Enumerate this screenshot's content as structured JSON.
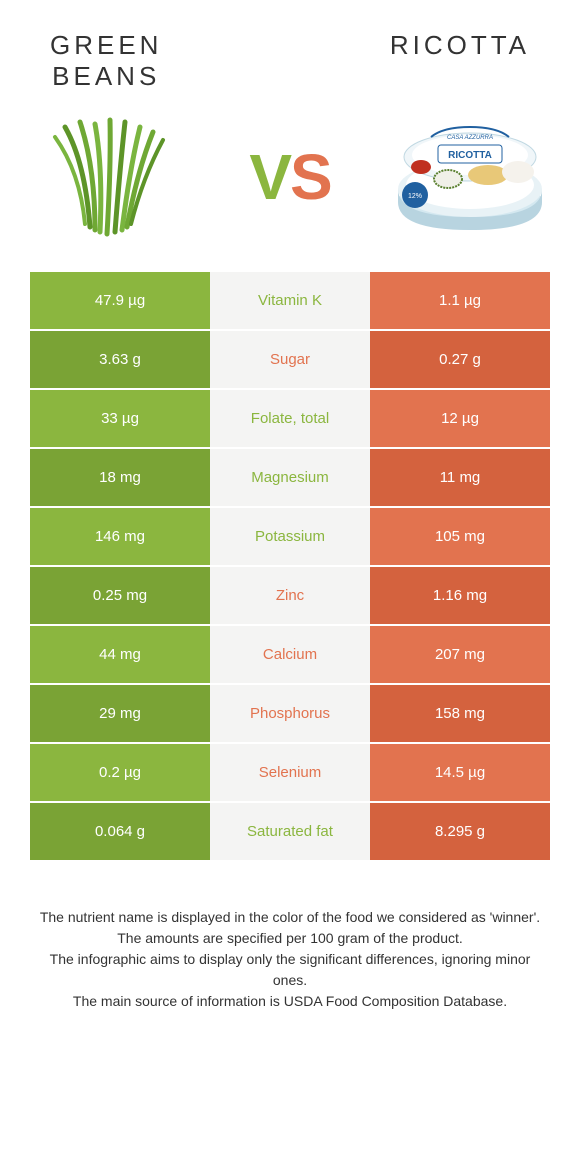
{
  "colors": {
    "green": "#8bb63f",
    "green_dark": "#7aa335",
    "orange": "#e2734f",
    "orange_dark": "#d4623e",
    "mid_bg": "#f4f4f3"
  },
  "header": {
    "left_title": "GREEN\nBEANS",
    "right_title": "RICOTTA",
    "vs_v": "V",
    "vs_s": "S"
  },
  "rows": [
    {
      "left": "47.9 µg",
      "mid": "Vitamin K",
      "right": "1.1 µg",
      "winner": "left"
    },
    {
      "left": "3.63 g",
      "mid": "Sugar",
      "right": "0.27 g",
      "winner": "right"
    },
    {
      "left": "33 µg",
      "mid": "Folate, total",
      "right": "12 µg",
      "winner": "left"
    },
    {
      "left": "18 mg",
      "mid": "Magnesium",
      "right": "11 mg",
      "winner": "left"
    },
    {
      "left": "146 mg",
      "mid": "Potassium",
      "right": "105 mg",
      "winner": "left"
    },
    {
      "left": "0.25 mg",
      "mid": "Zinc",
      "right": "1.16 mg",
      "winner": "right"
    },
    {
      "left": "44 mg",
      "mid": "Calcium",
      "right": "207 mg",
      "winner": "right"
    },
    {
      "left": "29 mg",
      "mid": "Phosphorus",
      "right": "158 mg",
      "winner": "right"
    },
    {
      "left": "0.2 µg",
      "mid": "Selenium",
      "right": "14.5 µg",
      "winner": "right"
    },
    {
      "left": "0.064 g",
      "mid": "Saturated fat",
      "right": "8.295 g",
      "winner": "left"
    }
  ],
  "footer": {
    "line1": "The nutrient name is displayed in the color of the food we considered as 'winner'.",
    "line2": "The amounts are specified per 100 gram of the product.",
    "line3": "The infographic aims to display only the significant differences, ignoring minor ones.",
    "line4": "The main source of information is USDA Food Composition Database."
  }
}
